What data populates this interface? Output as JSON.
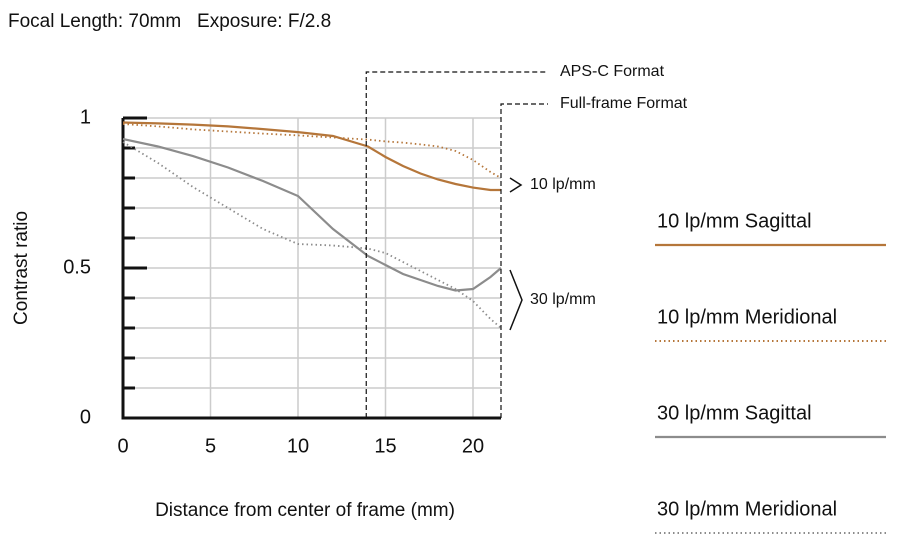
{
  "chart_data": {
    "type": "line",
    "title": "Focal Length: 70mm   Exposure: F/2.8",
    "x_label": "Distance from center of frame (mm)",
    "y_label": "Contrast ratio",
    "x": [
      0,
      2,
      4,
      6,
      8,
      10,
      12,
      14,
      15,
      16,
      17,
      18,
      19,
      20,
      21,
      21.6
    ],
    "series": [
      {
        "name": "10 lp/mm Sagittal",
        "color": "#b5763a",
        "style": "solid",
        "values": [
          0.985,
          0.982,
          0.978,
          0.972,
          0.963,
          0.953,
          0.94,
          0.905,
          0.87,
          0.84,
          0.815,
          0.795,
          0.78,
          0.768,
          0.76,
          0.76
        ]
      },
      {
        "name": "10 lp/mm Meridional",
        "color": "#b5763a",
        "style": "dotted",
        "values": [
          0.98,
          0.972,
          0.962,
          0.955,
          0.948,
          0.942,
          0.935,
          0.928,
          0.922,
          0.918,
          0.912,
          0.905,
          0.89,
          0.86,
          0.82,
          0.8
        ]
      },
      {
        "name": "30 lp/mm Sagittal",
        "color": "#8c8c8c",
        "style": "solid",
        "values": [
          0.93,
          0.905,
          0.873,
          0.835,
          0.79,
          0.74,
          0.63,
          0.54,
          0.51,
          0.48,
          0.46,
          0.44,
          0.425,
          0.43,
          0.47,
          0.5
        ]
      },
      {
        "name": "30 lp/mm Meridional",
        "color": "#8c8c8c",
        "style": "dotted",
        "values": [
          0.92,
          0.85,
          0.77,
          0.7,
          0.63,
          0.58,
          0.575,
          0.565,
          0.55,
          0.52,
          0.49,
          0.46,
          0.43,
          0.39,
          0.33,
          0.3
        ]
      }
    ],
    "xlim": [
      0,
      21.6
    ],
    "ylim": [
      0,
      1
    ],
    "xticks": [
      0,
      5,
      10,
      15,
      20
    ],
    "yticks": [
      0,
      0.5,
      1
    ],
    "yminorticks": [
      0.1,
      0.2,
      0.3,
      0.4,
      0.6,
      0.7,
      0.8,
      0.9
    ],
    "grid": true,
    "markers": [
      {
        "x": 13.9,
        "label": "APS-C Format"
      },
      {
        "x": 21.6,
        "label": "Full-frame Format"
      }
    ],
    "group_labels": [
      "10 lp/mm",
      "30 lp/mm"
    ]
  }
}
